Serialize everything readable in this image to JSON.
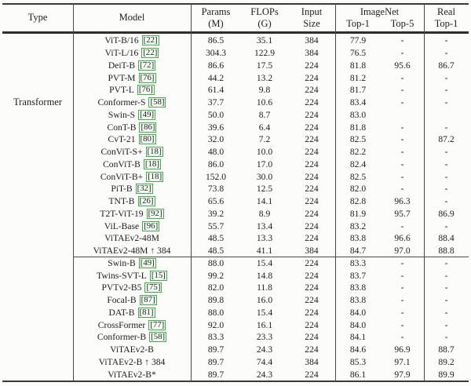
{
  "table": {
    "headers": {
      "type": "Type",
      "model": "Model",
      "params_line1": "Params",
      "params_line2": "(M)",
      "flops_line1": "FLOPs",
      "flops_line2": "(G)",
      "input_line1": "Input",
      "input_line2": "Size",
      "imagenet_group": "ImageNet",
      "imagenet_top1": "Top-1",
      "imagenet_top5": "Top-5",
      "real_line1": "Real",
      "real_line2": "Top-1"
    },
    "type_label": "Transformer",
    "cite_border_color": "#3fae49",
    "section_break_row_index": 18,
    "rows": [
      {
        "model": "ViT-B/16",
        "cite": "22",
        "params": "86.5",
        "flops": "35.1",
        "input": "384",
        "top1": "77.9",
        "top5": "-",
        "real": "-"
      },
      {
        "model": "ViT-L/16",
        "cite": "22",
        "params": "304.3",
        "flops": "122.9",
        "input": "384",
        "top1": "76.5",
        "top5": "-",
        "real": "-"
      },
      {
        "model": "DeiT-B",
        "cite": "72",
        "params": "86.6",
        "flops": "17.5",
        "input": "224",
        "top1": "81.8",
        "top5": "95.6",
        "real": "86.7"
      },
      {
        "model": "PVT-M",
        "cite": "76",
        "params": "44.2",
        "flops": "13.2",
        "input": "224",
        "top1": "81.2",
        "top5": "-",
        "real": "-"
      },
      {
        "model": "PVT-L",
        "cite": "76",
        "params": "61.4",
        "flops": "9.8",
        "input": "224",
        "top1": "81.7",
        "top5": "-",
        "real": "-"
      },
      {
        "model": "Conformer-S",
        "cite": "58",
        "params": "37.7",
        "flops": "10.6",
        "input": "224",
        "top1": "83.4",
        "top5": "-",
        "real": "-"
      },
      {
        "model": "Swin-S",
        "cite": "49",
        "params": "50.0",
        "flops": "8.7",
        "input": "224",
        "top1": "83.0",
        "top5": "",
        "real": ""
      },
      {
        "model": "ConT-B",
        "cite": "86",
        "params": "39.6",
        "flops": "6.4",
        "input": "224",
        "top1": "81.8",
        "top5": "-",
        "real": "-"
      },
      {
        "model": "CvT-21",
        "cite": "80",
        "params": "32.0",
        "flops": "7.2",
        "input": "224",
        "top1": "82.5",
        "top5": "-",
        "real": "87.2"
      },
      {
        "model": "ConViT-S+",
        "cite": "18",
        "params": "48.0",
        "flops": "10.0",
        "input": "224",
        "top1": "82.2",
        "top5": "-",
        "real": "-"
      },
      {
        "model": "ConViT-B",
        "cite": "18",
        "params": "86.0",
        "flops": "17.0",
        "input": "224",
        "top1": "82.4",
        "top5": "-",
        "real": "-"
      },
      {
        "model": "ConViT-B+",
        "cite": "18",
        "params": "152.0",
        "flops": "30.0",
        "input": "224",
        "top1": "82.5",
        "top5": "-",
        "real": "-"
      },
      {
        "model": "PiT-B",
        "cite": "32",
        "params": "73.8",
        "flops": "12.5",
        "input": "224",
        "top1": "82.0",
        "top5": "-",
        "real": "-"
      },
      {
        "model": "TNT-B",
        "cite": "26",
        "params": "65.6",
        "flops": "14.1",
        "input": "224",
        "top1": "82.8",
        "top5": "96.3",
        "real": "-"
      },
      {
        "model": "T2T-ViT-19",
        "cite": "92",
        "params": "39.2",
        "flops": "8.9",
        "input": "224",
        "top1": "81.9",
        "top5": "95.7",
        "real": "86.9"
      },
      {
        "model": "ViL-Base",
        "cite": "96",
        "params": "55.7",
        "flops": "13.4",
        "input": "224",
        "top1": "83.2",
        "top5": "-",
        "real": "-"
      },
      {
        "model": "ViTAEv2-48M",
        "cite": "",
        "params": "48.5",
        "flops": "13.3",
        "input": "224",
        "top1": "83.8",
        "top5": "96.6",
        "real": "88.4"
      },
      {
        "model": "ViTAEv2-48M ↑ 384",
        "cite": "",
        "params": "48.5",
        "flops": "41.1",
        "input": "384",
        "top1": "84.7",
        "top5": "97.0",
        "real": "88.8"
      },
      {
        "model": "Swin-B",
        "cite": "49",
        "params": "88.0",
        "flops": "15.4",
        "input": "224",
        "top1": "83.3",
        "top5": "-",
        "real": "-"
      },
      {
        "model": "Twins-SVT-L",
        "cite": "15",
        "params": "99.2",
        "flops": "14.8",
        "input": "224",
        "top1": "83.7",
        "top5": "-",
        "real": "-"
      },
      {
        "model": "PVTv2-B5",
        "cite": "75",
        "params": "82.0",
        "flops": "11.8",
        "input": "224",
        "top1": "83.8",
        "top5": "-",
        "real": "-"
      },
      {
        "model": "Focal-B",
        "cite": "87",
        "params": "89.8",
        "flops": "16.0",
        "input": "224",
        "top1": "83.8",
        "top5": "-",
        "real": "-"
      },
      {
        "model": "DAT-B",
        "cite": "81",
        "params": "88.0",
        "flops": "15.4",
        "input": "224",
        "top1": "84.0",
        "top5": "-",
        "real": "-"
      },
      {
        "model": "CrossFormer",
        "cite": "77",
        "params": "92.0",
        "flops": "16.1",
        "input": "224",
        "top1": "84.0",
        "top5": "-",
        "real": "-"
      },
      {
        "model": "Conformer-B",
        "cite": "58",
        "params": "83.3",
        "flops": "23.3",
        "input": "224",
        "top1": "84.1",
        "top5": "-",
        "real": "-"
      },
      {
        "model": "ViTAEv2-B",
        "cite": "",
        "params": "89.7",
        "flops": "24.3",
        "input": "224",
        "top1": "84.6",
        "top5": "96.9",
        "real": "88.7"
      },
      {
        "model": "ViTAEv2-B ↑ 384",
        "cite": "",
        "params": "89.7",
        "flops": "74.4",
        "input": "384",
        "top1": "85.3",
        "top5": "97.1",
        "real": "89.2"
      },
      {
        "model": "ViTAEv2-B*",
        "cite": "",
        "params": "89.7",
        "flops": "24.3",
        "input": "224",
        "top1": "86.1",
        "top5": "97.9",
        "real": "89.9"
      }
    ]
  }
}
